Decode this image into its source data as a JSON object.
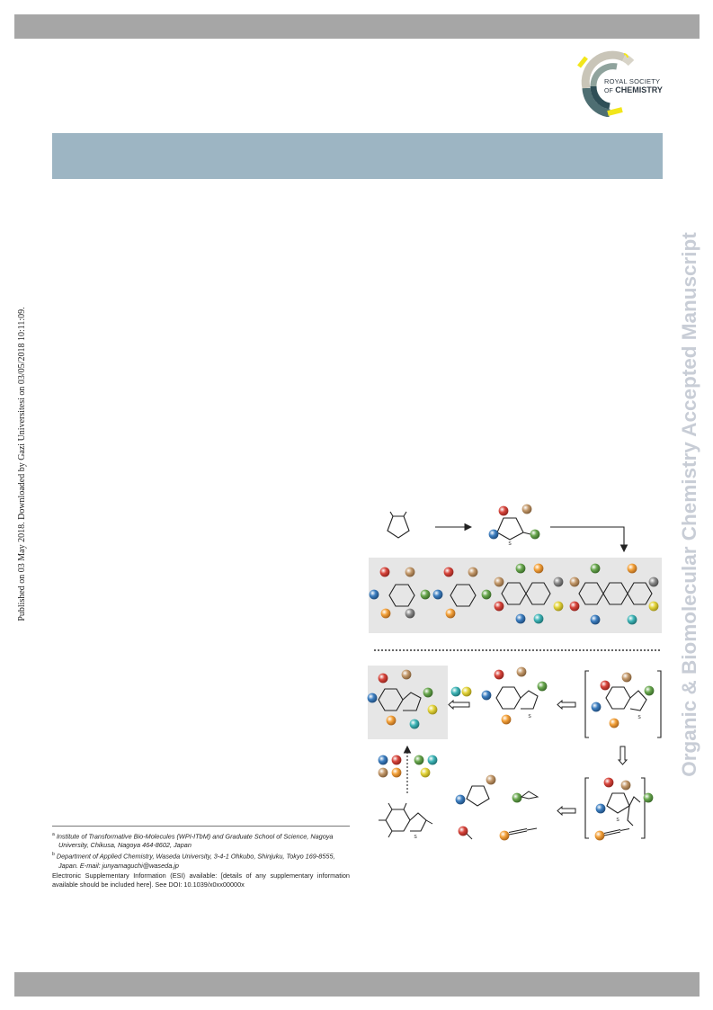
{
  "header": {
    "publisher_logo": {
      "line1": "ROYAL SOCIETY",
      "line2_prefix": "OF",
      "line2": "CHEMISTRY",
      "colors": [
        "#c9c5b8",
        "#8fa39d",
        "#4e6e72",
        "#2f4f57",
        "#f2e61b"
      ]
    }
  },
  "sidebar": {
    "publication_note": "Published on 03 May 2018. Downloaded by Gazi Universitesi on 03/05/2018 10:11:09.",
    "journal_watermark": "Organic & Biomolecular Chemistry Accepted Manuscript"
  },
  "footnotes": {
    "affiliation_a": {
      "marker": "a",
      "text": "Institute of Transformative Bio-Molecules (WPI-ITbM) and Graduate School of Science, Nagoya University, Chikusa, Nagoya 464-8602, Japan"
    },
    "affiliation_b": {
      "marker": "b",
      "text": "Department of Applied Chemistry, Waseda University, 3-4-1 Ohkubo, Shinjuku, Tokyo 169-8555, Japan. E-mail: junyamaguchi@waseda.jp"
    },
    "esi": "Electronic Supplementary Information (ESI) available: [details of any supplementary information available should be included here]. See DOI: 10.1039/x0xx00000x"
  },
  "scheme": {
    "substituent_colors": {
      "red": "#d8453c",
      "tan": "#c49a6c",
      "blue": "#3d7fc1",
      "green": "#6aa84f",
      "orange": "#f4a23a",
      "gray": "#8c8c8c",
      "yellow": "#e3d43a",
      "teal": "#3fb6b8"
    },
    "panel_fill": "#e6e6e6",
    "atom_labels": {
      "thiophene_top": "S",
      "benzothiophene_mid": "S",
      "dihydro_intermediate": "S",
      "alkyne_intermediate": "S",
      "starting_benzothiophene": "S"
    }
  }
}
